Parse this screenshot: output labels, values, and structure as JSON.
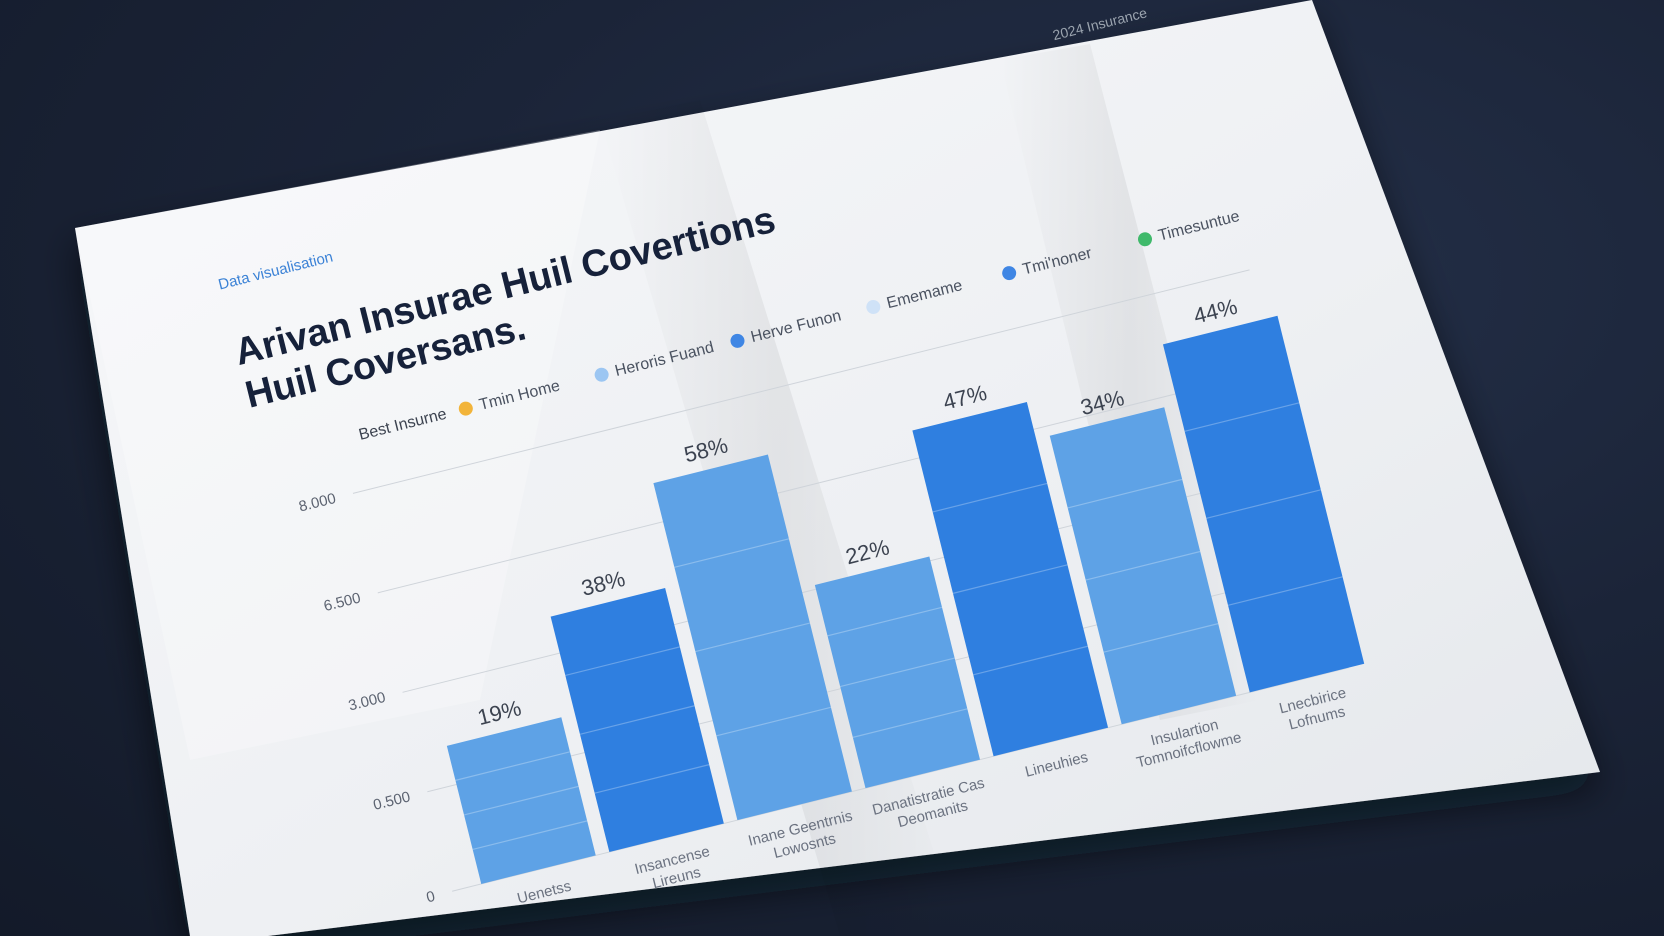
{
  "document": {
    "kicker": "Data visualisation",
    "corner_note": "2024 Insurance",
    "title_line1": "Arivan Insurae Huil Covertions",
    "title_line2": "Huil Coversans."
  },
  "colors": {
    "background": "#1b2438",
    "paper": "#f3f4f6",
    "bar_light": "#5ea2e6",
    "bar_dark": "#2f7fe0",
    "legend_orange": "#f2b43a",
    "legend_light": "#9cc6f2",
    "legend_blue": "#3f86e4",
    "legend_green": "#3fb96b",
    "kicker_blue": "#3b82d6"
  },
  "chart_data": {
    "type": "bar",
    "legend": {
      "label": "Best Insurne",
      "items": [
        {
          "name": "Tmin Home",
          "color": "#f2b43a"
        },
        {
          "name": "Heroris Fuand",
          "color": "#9cc6f2"
        },
        {
          "name": "Herve Funon",
          "color": "#3f86e4"
        },
        {
          "name": "Ememame",
          "color": "#cfe2f7"
        },
        {
          "name": "Tmi'noner",
          "color": "#3f86e4"
        },
        {
          "name": "Timesuntue",
          "color": "#3fb96b"
        }
      ]
    },
    "y_ticks": [
      "0",
      "0.500",
      "3.000",
      "6.500",
      "8.000"
    ],
    "categories": [
      "Uenetss",
      "Insancense Lireuns",
      "Inane Geentrnis Lowosnts",
      "Danatistratie Cas Deomanits",
      "Lineuhies",
      "Insulartion Tomnoifcflowme",
      "Lnecbirice Lofnums"
    ],
    "value_labels": [
      "19%",
      "38%",
      "58%",
      "22%",
      "47%",
      "34%",
      "44%"
    ],
    "values": [
      19,
      38,
      58,
      22,
      47,
      34,
      44
    ],
    "bar_shades": [
      "light",
      "dark",
      "light",
      "light",
      "dark",
      "light",
      "dark"
    ]
  }
}
